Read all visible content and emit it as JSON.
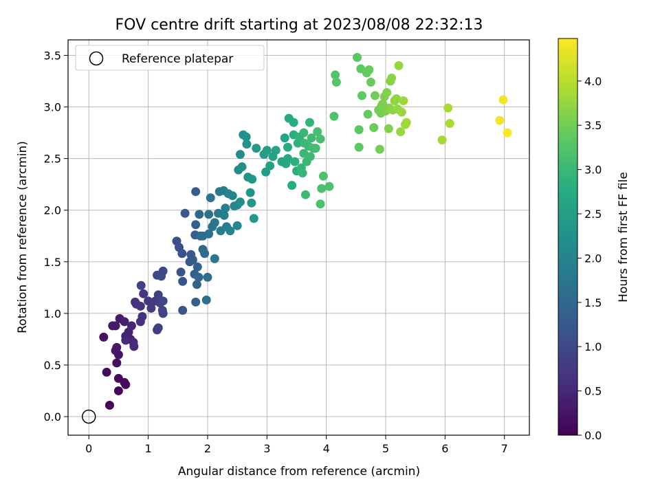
{
  "chart_data": {
    "type": "scatter",
    "title": "FOV centre drift starting at 2023/08/08 22:32:13",
    "xlabel": "Angular distance from reference (arcmin)",
    "ylabel": "Rotation from reference (arcmin)",
    "xlim": [
      -0.35,
      7.42
    ],
    "ylim": [
      -0.18,
      3.65
    ],
    "xticks": [
      0,
      1,
      2,
      3,
      4,
      5,
      6,
      7
    ],
    "yticks": [
      0.0,
      0.5,
      1.0,
      1.5,
      2.0,
      2.5,
      3.0,
      3.5
    ],
    "xtick_labels": [
      "0",
      "1",
      "2",
      "3",
      "4",
      "5",
      "6",
      "7"
    ],
    "ytick_labels": [
      "0.0",
      "0.5",
      "1.0",
      "1.5",
      "2.0",
      "2.5",
      "3.0",
      "3.5"
    ],
    "grid": true,
    "legend": {
      "placement": "top-left",
      "entries": [
        "Reference platepar"
      ]
    },
    "reference_point": {
      "x": 0,
      "y": 0
    },
    "colorbar": {
      "label": "Hours from first FF file",
      "colormap": "viridis",
      "range": [
        0,
        4.48
      ],
      "ticks": [
        0.0,
        0.5,
        1.0,
        1.5,
        2.0,
        2.5,
        3.0,
        3.5,
        4.0
      ],
      "tick_labels": [
        "0.0",
        "0.5",
        "1.0",
        "1.5",
        "2.0",
        "2.5",
        "3.0",
        "3.5",
        "4.0"
      ]
    },
    "points": [
      [
        0.35,
        0.11,
        0.05
      ],
      [
        0.5,
        0.25,
        0.08
      ],
      [
        0.62,
        0.31,
        0.1
      ],
      [
        0.6,
        0.33,
        0.12
      ],
      [
        0.5,
        0.37,
        0.1
      ],
      [
        0.3,
        0.43,
        0.14
      ],
      [
        0.47,
        0.52,
        0.16
      ],
      [
        0.25,
        0.77,
        0.2
      ],
      [
        0.5,
        0.6,
        0.22
      ],
      [
        0.45,
        0.64,
        0.25
      ],
      [
        0.47,
        0.67,
        0.28
      ],
      [
        0.4,
        0.88,
        0.3
      ],
      [
        0.45,
        0.88,
        0.32
      ],
      [
        0.52,
        0.95,
        0.35
      ],
      [
        0.6,
        0.92,
        0.38
      ],
      [
        0.62,
        0.78,
        0.4
      ],
      [
        0.7,
        0.75,
        0.42
      ],
      [
        0.67,
        0.82,
        0.45
      ],
      [
        0.72,
        0.88,
        0.48
      ],
      [
        0.75,
        0.72,
        0.5
      ],
      [
        0.62,
        0.74,
        0.52
      ],
      [
        0.76,
        0.68,
        0.55
      ],
      [
        0.78,
        1.11,
        0.58
      ],
      [
        0.8,
        1.09,
        0.6
      ],
      [
        0.87,
        0.92,
        0.62
      ],
      [
        0.9,
        0.97,
        0.65
      ],
      [
        0.87,
        1.07,
        0.68
      ],
      [
        0.92,
        1.19,
        0.7
      ],
      [
        1.0,
        1.12,
        0.72
      ],
      [
        1.05,
        1.05,
        0.75
      ],
      [
        1.12,
        1.12,
        0.78
      ],
      [
        1.15,
        0.84,
        0.8
      ],
      [
        1.17,
        0.86,
        0.82
      ],
      [
        1.17,
        1.18,
        0.85
      ],
      [
        1.2,
        1.1,
        0.88
      ],
      [
        1.25,
        1.0,
        0.9
      ],
      [
        1.24,
        1.03,
        0.92
      ],
      [
        1.25,
        1.12,
        0.94
      ],
      [
        1.15,
        1.37,
        0.96
      ],
      [
        1.22,
        1.36,
        0.98
      ],
      [
        1.25,
        1.41,
        1.0
      ],
      [
        0.88,
        1.27,
        0.9
      ],
      [
        1.48,
        1.7,
        1.05
      ],
      [
        1.52,
        1.64,
        1.08
      ],
      [
        1.57,
        1.58,
        1.1
      ],
      [
        1.55,
        1.4,
        1.12
      ],
      [
        1.58,
        1.31,
        1.15
      ],
      [
        1.58,
        1.03,
        1.18
      ],
      [
        1.62,
        1.97,
        1.2
      ],
      [
        1.7,
        1.5,
        1.22
      ],
      [
        1.72,
        1.57,
        1.25
      ],
      [
        1.75,
        1.52,
        1.28
      ],
      [
        1.78,
        1.38,
        1.3
      ],
      [
        1.79,
        1.76,
        1.32
      ],
      [
        1.8,
        1.86,
        1.35
      ],
      [
        1.8,
        2.18,
        1.32
      ],
      [
        1.8,
        1.11,
        1.38
      ],
      [
        1.82,
        1.28,
        1.4
      ],
      [
        1.83,
        1.45,
        1.42
      ],
      [
        1.85,
        1.35,
        1.45
      ],
      [
        1.86,
        1.96,
        1.48
      ],
      [
        1.88,
        1.75,
        1.5
      ],
      [
        1.92,
        1.62,
        1.52
      ],
      [
        1.92,
        1.75,
        1.55
      ],
      [
        1.95,
        1.58,
        1.58
      ],
      [
        1.98,
        1.13,
        1.6
      ],
      [
        2.0,
        1.35,
        1.62
      ],
      [
        2.02,
        1.77,
        1.65
      ],
      [
        2.02,
        1.96,
        1.68
      ],
      [
        2.05,
        2.12,
        1.7
      ],
      [
        2.08,
        1.84,
        1.72
      ],
      [
        2.12,
        1.88,
        1.75
      ],
      [
        2.12,
        1.53,
        1.78
      ],
      [
        2.18,
        1.97,
        1.8
      ],
      [
        2.2,
        2.18,
        1.82
      ],
      [
        2.22,
        1.8,
        1.85
      ],
      [
        2.27,
        2.19,
        1.88
      ],
      [
        2.28,
        1.95,
        1.9
      ],
      [
        2.3,
        2.02,
        1.92
      ],
      [
        2.32,
        1.84,
        1.95
      ],
      [
        2.35,
        2.16,
        1.98
      ],
      [
        2.38,
        1.8,
        2.0
      ],
      [
        2.42,
        2.14,
        2.02
      ],
      [
        2.45,
        2.04,
        2.05
      ],
      [
        2.5,
        2.05,
        2.08
      ],
      [
        2.5,
        1.85,
        2.1
      ],
      [
        2.52,
        2.39,
        2.12
      ],
      [
        2.55,
        2.08,
        2.15
      ],
      [
        2.55,
        2.54,
        2.18
      ],
      [
        2.58,
        2.42,
        2.2
      ],
      [
        2.6,
        2.73,
        2.22
      ],
      [
        2.65,
        2.71,
        2.25
      ],
      [
        2.66,
        2.64,
        2.28
      ],
      [
        2.68,
        2.32,
        2.3
      ],
      [
        2.72,
        2.17,
        2.32
      ],
      [
        2.74,
        2.07,
        2.35
      ],
      [
        2.75,
        2.3,
        2.38
      ],
      [
        2.78,
        1.92,
        2.4
      ],
      [
        2.82,
        2.6,
        2.42
      ],
      [
        2.95,
        2.54,
        2.45
      ],
      [
        2.98,
        2.37,
        2.48
      ],
      [
        3.0,
        2.58,
        2.5
      ],
      [
        3.05,
        2.43,
        2.52
      ],
      [
        3.1,
        2.52,
        2.55
      ],
      [
        3.15,
        2.58,
        2.58
      ],
      [
        3.25,
        2.47,
        2.6
      ],
      [
        3.3,
        2.7,
        2.62
      ],
      [
        3.32,
        2.45,
        2.65
      ],
      [
        3.35,
        2.5,
        2.68
      ],
      [
        3.35,
        2.61,
        2.7
      ],
      [
        3.37,
        2.89,
        2.72
      ],
      [
        3.42,
        2.24,
        2.75
      ],
      [
        3.45,
        2.85,
        2.78
      ],
      [
        3.45,
        2.73,
        2.8
      ],
      [
        3.47,
        2.47,
        2.82
      ],
      [
        3.5,
        2.38,
        2.85
      ],
      [
        3.52,
        2.65,
        2.88
      ],
      [
        3.55,
        2.71,
        2.9
      ],
      [
        3.58,
        2.41,
        2.92
      ],
      [
        3.6,
        2.36,
        2.95
      ],
      [
        3.62,
        2.75,
        2.98
      ],
      [
        3.62,
        2.55,
        3.0
      ],
      [
        3.63,
        2.65,
        3.02
      ],
      [
        3.65,
        2.15,
        3.05
      ],
      [
        3.67,
        2.47,
        2.98
      ],
      [
        3.7,
        2.62,
        3.0
      ],
      [
        3.72,
        2.85,
        2.95
      ],
      [
        3.73,
        2.52,
        3.02
      ],
      [
        3.75,
        2.7,
        3.05
      ],
      [
        3.78,
        2.6,
        3.08
      ],
      [
        3.82,
        2.6,
        3.1
      ],
      [
        3.85,
        2.76,
        3.12
      ],
      [
        3.9,
        2.69,
        3.14
      ],
      [
        3.9,
        2.06,
        3.15
      ],
      [
        3.92,
        2.21,
        3.16
      ],
      [
        3.95,
        2.33,
        3.18
      ],
      [
        4.05,
        2.23,
        3.2
      ],
      [
        4.13,
        2.91,
        3.22
      ],
      [
        4.15,
        3.31,
        3.25
      ],
      [
        4.17,
        3.24,
        3.27
      ],
      [
        4.52,
        3.48,
        3.3
      ],
      [
        4.55,
        2.78,
        3.32
      ],
      [
        4.55,
        2.61,
        3.33
      ],
      [
        4.58,
        3.37,
        3.35
      ],
      [
        4.6,
        3.11,
        3.37
      ],
      [
        4.68,
        3.33,
        3.38
      ],
      [
        4.7,
        2.93,
        3.4
      ],
      [
        4.72,
        3.36,
        3.42
      ],
      [
        4.75,
        3.24,
        3.43
      ],
      [
        4.8,
        2.8,
        3.45
      ],
      [
        4.82,
        3.11,
        3.47
      ],
      [
        4.88,
        2.97,
        3.48
      ],
      [
        4.9,
        2.59,
        3.5
      ],
      [
        4.92,
        2.94,
        3.52
      ],
      [
        4.93,
        3.01,
        3.53
      ],
      [
        4.95,
        3.03,
        3.55
      ],
      [
        4.98,
        3.1,
        3.57
      ],
      [
        5.0,
        2.96,
        3.58
      ],
      [
        5.02,
        3.14,
        3.6
      ],
      [
        5.05,
        2.79,
        3.62
      ],
      [
        5.06,
        2.99,
        3.63
      ],
      [
        5.08,
        3.25,
        3.65
      ],
      [
        5.1,
        3.28,
        3.67
      ],
      [
        5.12,
        2.97,
        3.68
      ],
      [
        5.15,
        3.06,
        3.7
      ],
      [
        5.18,
        3.08,
        3.72
      ],
      [
        5.2,
        2.98,
        3.73
      ],
      [
        5.22,
        3.4,
        3.75
      ],
      [
        5.25,
        2.76,
        3.77
      ],
      [
        5.27,
        2.95,
        3.78
      ],
      [
        5.3,
        3.06,
        3.8
      ],
      [
        5.33,
        2.83,
        3.82
      ],
      [
        5.35,
        2.85,
        3.83
      ],
      [
        5.95,
        2.68,
        3.85
      ],
      [
        6.05,
        2.99,
        3.88
      ],
      [
        6.08,
        2.84,
        3.9
      ],
      [
        6.92,
        2.87,
        4.4
      ],
      [
        6.98,
        3.07,
        4.42
      ],
      [
        7.05,
        2.75,
        4.45
      ]
    ]
  }
}
